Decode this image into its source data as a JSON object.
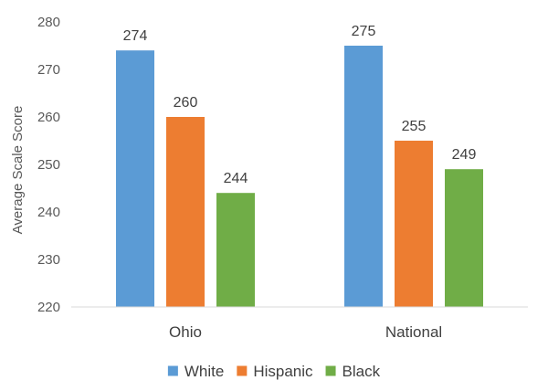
{
  "chart_data": {
    "type": "bar",
    "categories": [
      "Ohio",
      "National"
    ],
    "series": [
      {
        "name": "White",
        "values": [
          274,
          275
        ],
        "color": "#5B9BD5"
      },
      {
        "name": "Hispanic",
        "values": [
          260,
          255
        ],
        "color": "#ED7D31"
      },
      {
        "name": "Black",
        "values": [
          244,
          249
        ],
        "color": "#70AD47"
      }
    ],
    "ylabel": "Average Scale Score",
    "xlabel": "",
    "ylim": [
      220,
      280
    ],
    "yticks": [
      220,
      230,
      240,
      250,
      260,
      270,
      280
    ],
    "legend": "bottom",
    "grid": false
  }
}
